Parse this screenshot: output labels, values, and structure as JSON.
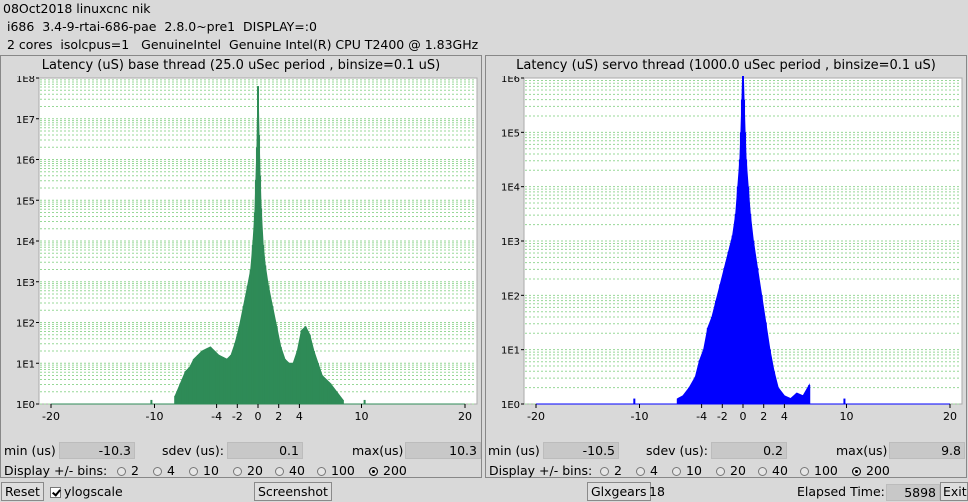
{
  "header": {
    "line1": "08Oct2018 linuxcnc nik",
    "line2": " i686  3.4-9-rtai-686-pae  2.8.0~pre1  DISPLAY=:0",
    "line3": " 2 cores  isolcpus=1   GenuineIntel  Genuine Intel(R) CPU T2400 @ 1.83GHz"
  },
  "panels": [
    {
      "id": "base",
      "stats": {
        "min_label": "min (us)",
        "min": "-10.3",
        "sdev_label": "sdev (us):",
        "sdev": "0.1",
        "max_label": "max(us)",
        "max": "10.3"
      }
    },
    {
      "id": "servo",
      "stats": {
        "min_label": "min (us)",
        "min": "-10.5",
        "sdev_label": "sdev (us):",
        "sdev": "0.2",
        "max_label": "max(us)",
        "max": "9.8"
      }
    }
  ],
  "bins": {
    "label": "Display +/- bins:",
    "options": [
      "2",
      "4",
      "10",
      "20",
      "40",
      "100",
      "200"
    ],
    "selected": "200"
  },
  "bottom": {
    "reset_label": "Reset",
    "ylog_label": "ylogscale",
    "ylog_checked": true,
    "screenshot_label": "Screenshot",
    "glxgears_label": "Glxgears",
    "glxgears_value": "18",
    "elapsed_label": "Elapsed Time:",
    "elapsed_value": "5898",
    "exit_label": "Exit"
  },
  "colors": {
    "base": "#2e8b57",
    "servo": "#0000ff",
    "grid": "#98d898",
    "plot_bg": "#ffffff"
  },
  "chart_data": [
    {
      "type": "bar",
      "title": "Latency (uS) base thread (25.0 uSec period , binsize=0.1 uS)",
      "xlabel": "",
      "ylabel": "",
      "xlim": [
        -20,
        20
      ],
      "xticks": [
        -20,
        -10,
        -4,
        -2,
        0,
        2,
        4,
        10,
        20
      ],
      "ylog": true,
      "ylim_exp": [
        0,
        8
      ],
      "yticks": [
        "1E0",
        "1E1",
        "1E2",
        "1E3",
        "1E4",
        "1E5",
        "1E6",
        "1E7",
        "1E8"
      ],
      "series": [
        {
          "x": [
            -10.3,
            -8,
            -7.5,
            -7,
            -6.6,
            -6.2,
            -5.8,
            -5.4,
            -5,
            -4.6,
            -4.2,
            -3.8,
            -3.4,
            -3,
            -2.6,
            -2.2,
            -1.8,
            -1.4,
            -1,
            -0.7,
            -0.5,
            -0.3,
            -0.2,
            -0.1,
            0,
            0.1,
            0.2,
            0.3,
            0.5,
            0.7,
            1,
            1.4,
            1.8,
            2.2,
            2.6,
            3,
            3.4,
            3.8,
            4.2,
            4.6,
            5,
            5.4,
            5.8,
            6.2,
            6.6,
            7,
            7.6,
            8.2,
            10.3
          ],
          "log10": [
            0.1,
            0.2,
            0.5,
            0.8,
            0.9,
            1.1,
            1.2,
            1.3,
            1.35,
            1.4,
            1.3,
            1.2,
            1.15,
            1.1,
            1.2,
            1.5,
            1.9,
            2.4,
            2.9,
            3.3,
            3.9,
            4.7,
            5.5,
            6.3,
            7.8,
            6.6,
            5.6,
            4.8,
            3.9,
            3.4,
            2.9,
            2.4,
            1.9,
            1.4,
            1.1,
            1.0,
            1.0,
            1.3,
            1.8,
            1.9,
            1.7,
            1.3,
            1.0,
            0.7,
            0.6,
            0.5,
            0.3,
            0.1,
            0.1
          ]
        }
      ]
    },
    {
      "type": "bar",
      "title": "Latency (uS) servo thread (1000.0 uSec period , binsize=0.1 uS)",
      "xlabel": "",
      "ylabel": "",
      "xlim": [
        -20,
        20
      ],
      "xticks": [
        -20,
        -10,
        -4,
        -2,
        0,
        2,
        4,
        10,
        20
      ],
      "ylog": true,
      "ylim_exp": [
        0,
        6
      ],
      "yticks": [
        "1E0",
        "1E1",
        "1E2",
        "1E3",
        "1E4",
        "1E5",
        "1E6"
      ],
      "series": [
        {
          "x": [
            -10.5,
            -6.3,
            -5.8,
            -5.2,
            -4.6,
            -4.2,
            -3.8,
            -3.4,
            -3,
            -2.6,
            -2.2,
            -1.8,
            -1.4,
            -1,
            -0.7,
            -0.5,
            -0.3,
            -0.2,
            -0.1,
            0,
            0.1,
            0.2,
            0.3,
            0.5,
            0.7,
            1,
            1.4,
            1.8,
            2.2,
            2.6,
            3,
            3.4,
            4,
            4.6,
            5.2,
            5.8,
            6.4,
            9.8
          ],
          "log10": [
            0.1,
            0.1,
            0.15,
            0.3,
            0.5,
            0.8,
            1.0,
            1.4,
            1.6,
            1.9,
            2.2,
            2.5,
            2.8,
            3.1,
            3.5,
            4.0,
            4.5,
            5.0,
            5.6,
            6.3,
            5.6,
            5.0,
            4.5,
            4.0,
            3.5,
            3.0,
            2.5,
            2.0,
            1.5,
            1.0,
            0.6,
            0.3,
            0.15,
            0.1,
            0.2,
            0.15,
            0.35,
            0.1
          ]
        }
      ]
    }
  ]
}
